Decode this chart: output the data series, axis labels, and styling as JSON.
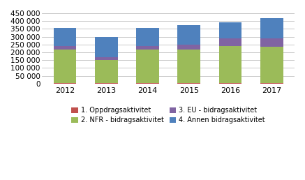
{
  "years": [
    "2012",
    "2013",
    "2014",
    "2015",
    "2016",
    "2017"
  ],
  "series": {
    "1. Oppdragsaktivitet": [
      5000,
      5000,
      5000,
      5000,
      5000,
      5000
    ],
    "2. NFR - bidragsaktivitet": [
      215000,
      148000,
      215000,
      215000,
      235000,
      230000
    ],
    "3. EU - bidragsaktivitet": [
      20000,
      15000,
      20000,
      30000,
      50000,
      55000
    ],
    "4. Annen bidragsaktivitet": [
      118000,
      130000,
      118000,
      122000,
      102000,
      128000
    ]
  },
  "colors": {
    "1. Oppdragsaktivitet": "#c0504d",
    "2. NFR - bidragsaktivitet": "#9bbb59",
    "3. EU - bidragsaktivitet": "#8064a2",
    "4. Annen bidragsaktivitet": "#4f81bd"
  },
  "ylim": [
    0,
    450000
  ],
  "yticks": [
    0,
    50000,
    100000,
    150000,
    200000,
    250000,
    300000,
    350000,
    400000,
    450000
  ],
  "background_color": "#ffffff",
  "grid_color": "#bfbfbf",
  "bar_width": 0.55,
  "legend_order": [
    "1. Oppdragsaktivitet",
    "2. NFR - bidragsaktivitet",
    "3. EU - bidragsaktivitet",
    "4. Annen bidragsaktivitet"
  ]
}
